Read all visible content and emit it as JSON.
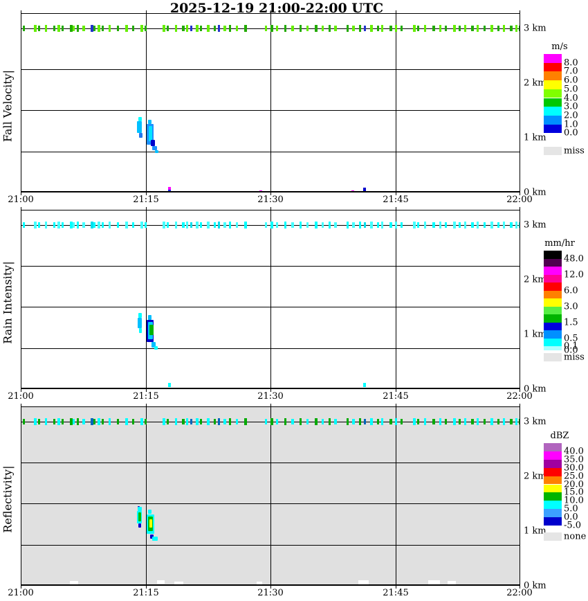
{
  "title": "2025-12-19  21:00-22:00 UTC",
  "chart_data": [
    {
      "type": "heatmap",
      "title": "Fall Velocity",
      "units": "m/s",
      "x_ticks": [
        "21:00",
        "21:15",
        "21:30",
        "21:45",
        "22:00"
      ],
      "y_ticks": [
        "0 km",
        "1 km",
        "2 km",
        "3 km"
      ],
      "y_range_km": [
        0,
        3.2
      ],
      "grid": "quarter-height horizontal lines, 15-min vertical lines",
      "colorbar": {
        "title": "m/s",
        "levels": [
          8.0,
          7.0,
          6.0,
          5.0,
          4.0,
          3.0,
          2.0,
          1.0,
          0.0
        ],
        "missing_label": "miss"
      },
      "features": [
        {
          "desc": "continuous speckled noise band at ~3 km across whole hour",
          "values_m_s": "0-4 (green/blue)"
        },
        {
          "desc": "small precipitation cell just after 21:15 between ~0.9 and 1.4 km",
          "values_m_s": "1-2 (cyan/blue)"
        },
        {
          "desc": "isolated near-surface dots near 21:18, 21:29, 21:40, 21:41",
          "values_m_s": "mixed (magenta/blue)"
        }
      ]
    },
    {
      "type": "heatmap",
      "title": "Rain Intensity",
      "units": "mm/hr",
      "x_ticks": [
        "21:00",
        "21:15",
        "21:30",
        "21:45",
        "22:00"
      ],
      "y_ticks": [
        "0 km",
        "1 km",
        "2 km",
        "3 km"
      ],
      "y_range_km": [
        0,
        3.2
      ],
      "colorbar": {
        "title": "mm/hr",
        "levels": [
          48.0,
          12.0,
          6.0,
          3.0,
          1.5,
          0.5,
          0.1,
          0.0
        ],
        "missing_label": "miss"
      },
      "features": [
        {
          "desc": "continuous faint band at ~3 km across whole hour",
          "values_mm_hr": "0.0-0.1 (cyan)"
        },
        {
          "desc": "small precipitation cell just after 21:15 between ~0.9 and 1.4 km",
          "values_mm_hr": "0.1-1.5 (cyan/blue with green core)"
        },
        {
          "desc": "two isolated near-surface dots near 21:18 and 21:41",
          "values_mm_hr": "~0.1 (cyan)"
        }
      ]
    },
    {
      "type": "heatmap",
      "title": "Reflectivity",
      "units": "dBZ",
      "x_ticks": [
        "21:00",
        "21:15",
        "21:30",
        "21:45",
        "22:00"
      ],
      "y_ticks": [
        "0 km",
        "1 km",
        "2 km",
        "3 km"
      ],
      "y_range_km": [
        0,
        3.2
      ],
      "background": "gray = none (no signal)",
      "colorbar": {
        "title": "dBZ",
        "levels": [
          40.0,
          35.0,
          30.0,
          25.0,
          20.0,
          15.0,
          10.0,
          5.0,
          0.0,
          -5.0
        ],
        "missing_label": "none"
      },
      "features": [
        {
          "desc": "continuous speckled band at ~3 km across whole hour",
          "values_dBZ": "5-10 (green/cyan)"
        },
        {
          "desc": "small precipitation cell just after 21:15 between ~0.9 and 1.4 km",
          "values_dBZ": "5-15 (cyan/green with yellow core)"
        },
        {
          "desc": "small white below-scale patches along the surface",
          "values_dBZ": "< -5"
        }
      ]
    }
  ],
  "render": {
    "x_tick_labels": [
      "21:00",
      "21:15",
      "21:30",
      "21:45",
      "22:00"
    ],
    "km_labels": [
      "3 km",
      "2 km",
      "1 km",
      "0 km"
    ],
    "band_ticks": [
      [
        2,
        3,
        0
      ],
      [
        18,
        4,
        1
      ],
      [
        24,
        3,
        0
      ],
      [
        34,
        3,
        1
      ],
      [
        46,
        3,
        0
      ],
      [
        52,
        4,
        1
      ],
      [
        58,
        3,
        0
      ],
      [
        70,
        4,
        0
      ],
      [
        74,
        3,
        1
      ],
      [
        80,
        3,
        0
      ],
      [
        88,
        4,
        1
      ],
      [
        100,
        4,
        2
      ],
      [
        104,
        3,
        0
      ],
      [
        110,
        4,
        1
      ],
      [
        116,
        3,
        0
      ],
      [
        126,
        3,
        1
      ],
      [
        138,
        3,
        0
      ],
      [
        150,
        4,
        1
      ],
      [
        160,
        3,
        0
      ],
      [
        172,
        4,
        1
      ],
      [
        178,
        3,
        0
      ],
      [
        204,
        4,
        1
      ],
      [
        210,
        3,
        0
      ],
      [
        222,
        3,
        1
      ],
      [
        232,
        4,
        0
      ],
      [
        238,
        3,
        1
      ],
      [
        244,
        3,
        2
      ],
      [
        252,
        4,
        1
      ],
      [
        258,
        3,
        0
      ],
      [
        268,
        4,
        1
      ],
      [
        278,
        3,
        0
      ],
      [
        284,
        3,
        2
      ],
      [
        292,
        4,
        1
      ],
      [
        300,
        3,
        0
      ],
      [
        310,
        3,
        1
      ],
      [
        322,
        4,
        0
      ],
      [
        352,
        3,
        1
      ],
      [
        360,
        4,
        0
      ],
      [
        368,
        3,
        1
      ],
      [
        380,
        3,
        0
      ],
      [
        390,
        4,
        1
      ],
      [
        402,
        3,
        0
      ],
      [
        412,
        3,
        1
      ],
      [
        424,
        4,
        0
      ],
      [
        434,
        3,
        1
      ],
      [
        444,
        3,
        0
      ],
      [
        452,
        4,
        1
      ],
      [
        470,
        3,
        0
      ],
      [
        478,
        4,
        1
      ],
      [
        488,
        3,
        0
      ],
      [
        495,
        3,
        2
      ],
      [
        504,
        4,
        1
      ],
      [
        514,
        3,
        0
      ],
      [
        520,
        3,
        1
      ],
      [
        532,
        4,
        0
      ],
      [
        540,
        3,
        1
      ],
      [
        548,
        3,
        0
      ],
      [
        566,
        4,
        1
      ],
      [
        572,
        3,
        0
      ],
      [
        582,
        3,
        1
      ],
      [
        594,
        4,
        0
      ],
      [
        604,
        3,
        1
      ],
      [
        612,
        3,
        0
      ],
      [
        624,
        4,
        1
      ],
      [
        632,
        3,
        0
      ],
      [
        640,
        3,
        1
      ],
      [
        650,
        4,
        0
      ],
      [
        658,
        3,
        1
      ],
      [
        668,
        3,
        0
      ],
      [
        678,
        4,
        1
      ],
      [
        688,
        3,
        0
      ],
      [
        696,
        3,
        1
      ],
      [
        706,
        4,
        0
      ],
      [
        714,
        3,
        1
      ],
      [
        719,
        3,
        0
      ]
    ],
    "panels": [
      {
        "name": "fall-velocity",
        "ylabel": "Fall Velocity|",
        "bg": "#FFFFFF",
        "band_palette": [
          "#22AA00",
          "#66EE00",
          "#2233CC"
        ],
        "blob": [
          [
            169,
            149,
            5,
            6,
            "#00FFFF"
          ],
          [
            167,
            155,
            7,
            17,
            "#00BFFF"
          ],
          [
            170,
            172,
            5,
            7,
            "#2277EE"
          ],
          [
            183,
            153,
            5,
            6,
            "#00BFFF"
          ],
          [
            181,
            159,
            10,
            30,
            "#1E90FF"
          ],
          [
            184,
            162,
            5,
            22,
            "#00E5FF"
          ],
          [
            187,
            182,
            6,
            9,
            "#0000CC"
          ],
          [
            189,
            191,
            7,
            6,
            "#1E90FF"
          ],
          [
            193,
            197,
            5,
            4,
            "#00BFFF"
          ]
        ],
        "surface_dots": [
          [
            212,
            250,
            4,
            4,
            "#FF00FF"
          ],
          [
            212,
            254,
            4,
            5,
            "#2222DD"
          ],
          [
            344,
            255,
            4,
            4,
            "#FF00FF"
          ],
          [
            477,
            255,
            4,
            4,
            "#FF00FF"
          ],
          [
            494,
            251,
            4,
            8,
            "#0000CC"
          ]
        ],
        "legend": {
          "title": "m/s",
          "cells": [
            [
              "#FF00FF",
              "8.0"
            ],
            [
              "#FF0000",
              "7.0"
            ],
            [
              "#FF8000",
              "6.0"
            ],
            [
              "#FFFF00",
              "5.0"
            ],
            [
              "#80FF00",
              "4.0"
            ],
            [
              "#00C800",
              "3.0"
            ],
            [
              "#00FFFF",
              "2.0"
            ],
            [
              "#0090FF",
              "1.0"
            ],
            [
              "#0000DD",
              "0.0"
            ]
          ],
          "miss_color": "#E5E5E5",
          "miss_label": "miss"
        }
      },
      {
        "name": "rain-intensity",
        "ylabel": "Rain Intensity|",
        "bg": "#FFFFFF",
        "band_palette": [
          "#00FFFF",
          "#44FFFF",
          "#00E0EE"
        ],
        "blob": [
          [
            169,
            148,
            5,
            7,
            "#00FFFF"
          ],
          [
            168,
            155,
            6,
            15,
            "#00BFFF"
          ],
          [
            170,
            170,
            4,
            7,
            "#00FFFF"
          ],
          [
            183,
            151,
            5,
            7,
            "#00BFFF"
          ],
          [
            181,
            158,
            10,
            32,
            "#0000CC"
          ],
          [
            183,
            161,
            7,
            25,
            "#00CFFF"
          ],
          [
            185,
            165,
            6,
            15,
            "#00B300"
          ],
          [
            188,
            190,
            6,
            8,
            "#00BFFF"
          ],
          [
            192,
            196,
            5,
            5,
            "#00FFFF"
          ]
        ],
        "surface_dots": [
          [
            212,
            249,
            4,
            6,
            "#00FFFF"
          ],
          [
            494,
            249,
            4,
            6,
            "#00FFFF"
          ]
        ],
        "legend": {
          "title": "mm/hr",
          "cells": [
            [
              "#000000",
              "48.0"
            ],
            [
              "#500050",
              ""
            ],
            [
              "#FF00FF",
              "12.0"
            ],
            [
              "#FF0096",
              ""
            ],
            [
              "#FF0000",
              "6.0"
            ],
            [
              "#FF8000",
              ""
            ],
            [
              "#FFFF00",
              "3.0"
            ],
            [
              "#55EE44",
              ""
            ],
            [
              "#00B400",
              "1.5"
            ],
            [
              "#0000DD",
              ""
            ],
            [
              "#0090FF",
              "0.5"
            ],
            [
              "#00FFFF",
              "0.1"
            ],
            [
              "#AAFFFF",
              "0.0",
              6
            ]
          ],
          "miss_color": "#E5E5E5",
          "miss_label": "miss"
        }
      },
      {
        "name": "reflectivity",
        "ylabel": "Reflectivity|",
        "bg": "#E0E0E0",
        "band_palette": [
          "#00AA00",
          "#00FFFF",
          "#0066BB"
        ],
        "blob": [
          [
            168,
            143,
            3,
            3,
            "#0000CC"
          ],
          [
            168,
            144,
            6,
            6,
            "#00FFFF"
          ],
          [
            167,
            150,
            7,
            18,
            "#00FFFF"
          ],
          [
            169,
            152,
            4,
            13,
            "#00C000"
          ],
          [
            169,
            168,
            4,
            6,
            "#0000CC"
          ],
          [
            183,
            148,
            5,
            6,
            "#00FFFF"
          ],
          [
            181,
            155,
            11,
            28,
            "#00FFFF"
          ],
          [
            183,
            158,
            7,
            21,
            "#00C000"
          ],
          [
            185,
            162,
            4,
            12,
            "#FFFF00"
          ],
          [
            186,
            184,
            5,
            6,
            "#0000CC"
          ],
          [
            189,
            187,
            8,
            6,
            "#00FFFF"
          ]
        ],
        "surface_dots": [
          [
            70,
            251,
            12,
            5,
            "#FFFFFF"
          ],
          [
            196,
            250,
            11,
            5,
            "#FFFFFF"
          ],
          [
            221,
            252,
            13,
            6,
            "#FFFFFF"
          ],
          [
            340,
            252,
            8,
            5,
            "#FFFFFF"
          ],
          [
            487,
            250,
            15,
            6,
            "#FFFFFF"
          ],
          [
            588,
            250,
            17,
            6,
            "#FFFFFF"
          ],
          [
            616,
            251,
            12,
            5,
            "#FFFFFF"
          ]
        ],
        "legend": {
          "title": "dBZ",
          "cells": [
            [
              "#B164BE",
              "40.0"
            ],
            [
              "#FF00FF",
              "35.0"
            ],
            [
              "#A000A0",
              "30.0"
            ],
            [
              "#FF0000",
              "25.0"
            ],
            [
              "#FF8000",
              "20.0"
            ],
            [
              "#FFFF00",
              "15.0"
            ],
            [
              "#00B400",
              "10.0"
            ],
            [
              "#00FFFF",
              "5.0"
            ],
            [
              "#3CA0FF",
              "0.0"
            ],
            [
              "#0000CC",
              "-5.0"
            ]
          ],
          "miss_color": "#E5E5E5",
          "miss_label": "none"
        }
      }
    ]
  }
}
